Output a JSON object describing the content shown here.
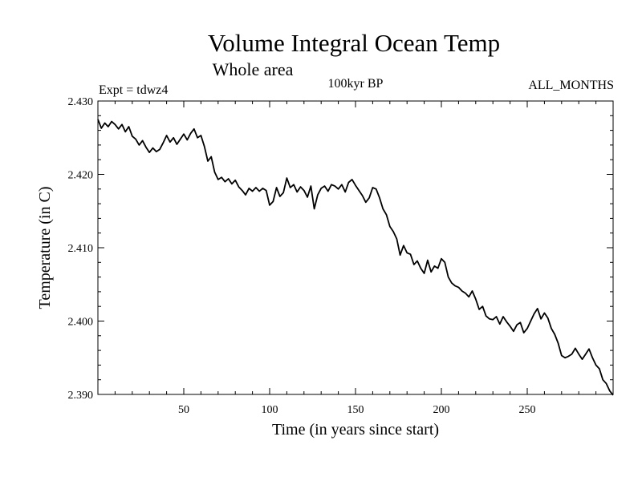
{
  "chart_data": {
    "type": "line",
    "title": "Volume Integral Ocean Temp",
    "subtitle": "Whole area",
    "annotations": {
      "left": "Expt = tdwz4",
      "center": "100kyr BP",
      "right": "ALL_MONTHS"
    },
    "xlabel": "Time (in years since start)",
    "ylabel": "Temperature (in C)",
    "xlim": [
      0,
      300
    ],
    "ylim": [
      2.39,
      2.43
    ],
    "xticks": [
      50,
      100,
      150,
      200,
      250
    ],
    "yticks": [
      "2.390",
      "2.400",
      "2.410",
      "2.420",
      "2.430"
    ],
    "grid": false,
    "series": [
      {
        "color": "#000000",
        "x": [
          0,
          2,
          4,
          6,
          8,
          10,
          12,
          14,
          16,
          18,
          20,
          22,
          24,
          26,
          28,
          30,
          32,
          34,
          36,
          38,
          40,
          42,
          44,
          46,
          48,
          50,
          52,
          54,
          56,
          58,
          60,
          62,
          64,
          66,
          68,
          70,
          72,
          74,
          76,
          78,
          80,
          82,
          84,
          86,
          88,
          90,
          92,
          94,
          96,
          98,
          100,
          102,
          104,
          106,
          108,
          110,
          112,
          114,
          116,
          118,
          120,
          122,
          124,
          126,
          128,
          130,
          132,
          134,
          136,
          138,
          140,
          142,
          144,
          146,
          148,
          150,
          152,
          154,
          156,
          158,
          160,
          162,
          164,
          166,
          168,
          170,
          172,
          174,
          176,
          178,
          180,
          182,
          184,
          186,
          188,
          190,
          192,
          194,
          196,
          198,
          200,
          202,
          204,
          206,
          208,
          210,
          212,
          214,
          216,
          218,
          220,
          222,
          224,
          226,
          228,
          230,
          232,
          234,
          236,
          238,
          240,
          242,
          244,
          246,
          248,
          250,
          252,
          254,
          256,
          258,
          260,
          262,
          264,
          266,
          268,
          270,
          272,
          274,
          276,
          278,
          280,
          282,
          284,
          286,
          288,
          290,
          292,
          294,
          296,
          298,
          300
        ],
        "y": [
          2.4275,
          2.4263,
          2.427,
          2.4265,
          2.4272,
          2.4268,
          2.4262,
          2.4268,
          2.4258,
          2.4265,
          2.4252,
          2.4248,
          2.424,
          2.4246,
          2.4237,
          2.423,
          2.4236,
          2.4231,
          2.4234,
          2.4243,
          2.4253,
          2.4244,
          2.425,
          2.4241,
          2.4248,
          2.4255,
          2.4247,
          2.4256,
          2.4262,
          2.425,
          2.4253,
          2.4238,
          2.4218,
          2.4224,
          2.4203,
          2.4193,
          2.4196,
          2.419,
          2.4194,
          2.4187,
          2.4192,
          2.4183,
          2.4178,
          2.4172,
          2.4181,
          2.4177,
          2.4182,
          2.4177,
          2.4181,
          2.4178,
          2.4158,
          2.4163,
          2.4182,
          2.417,
          2.4175,
          2.4195,
          2.4182,
          2.4186,
          2.4176,
          2.4183,
          2.4178,
          2.4169,
          2.4184,
          2.4153,
          2.4172,
          2.4181,
          2.4184,
          2.4177,
          2.4186,
          2.4184,
          2.418,
          2.4186,
          2.4176,
          2.4189,
          2.4193,
          2.4185,
          2.4178,
          2.4171,
          2.4162,
          2.4168,
          2.4182,
          2.418,
          2.4168,
          2.4153,
          2.4145,
          2.4129,
          2.4122,
          2.4112,
          2.409,
          2.4103,
          2.4093,
          2.4091,
          2.4077,
          2.4082,
          2.4072,
          2.4065,
          2.4083,
          2.4067,
          2.4075,
          2.4072,
          2.4085,
          2.408,
          2.406,
          2.4052,
          2.4048,
          2.4046,
          2.4041,
          2.4038,
          2.4033,
          2.4041,
          2.403,
          2.4016,
          2.402,
          2.4007,
          2.4003,
          2.4002,
          2.4006,
          2.3996,
          2.4006,
          2.3999,
          2.3993,
          2.3986,
          2.3995,
          2.3998,
          2.3984,
          2.399,
          2.4,
          2.401,
          2.4017,
          2.4003,
          2.4011,
          2.4004,
          2.399,
          2.3982,
          2.397,
          2.3953,
          2.395,
          2.3952,
          2.3955,
          2.3963,
          2.3955,
          2.3948,
          2.3955,
          2.3962,
          2.395,
          2.394,
          2.3935,
          2.392,
          2.3915,
          2.3905,
          2.3899
        ]
      }
    ]
  }
}
